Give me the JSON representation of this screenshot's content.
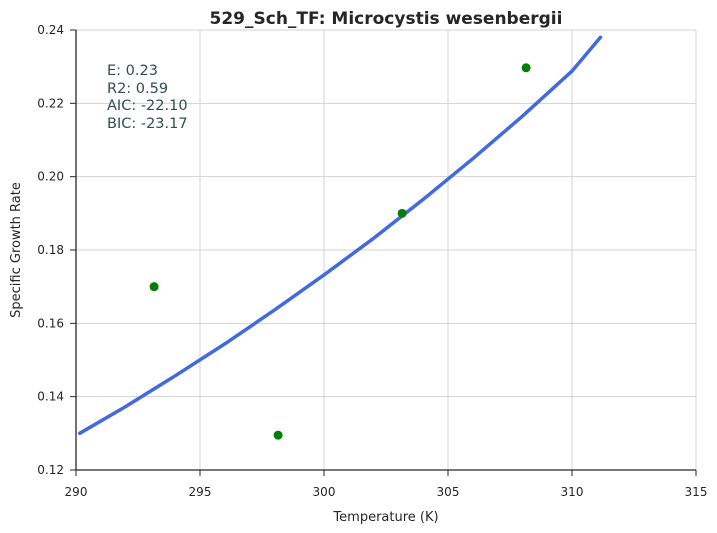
{
  "chart_data": {
    "type": "scatter",
    "title": "529_Sch_TF: Microcystis wesenbergii",
    "xlabel": "Temperature (K)",
    "ylabel": "Specific Growth Rate",
    "xlim": [
      290,
      315
    ],
    "ylim": [
      0.12,
      0.24
    ],
    "xticks": [
      290,
      295,
      300,
      305,
      310,
      315
    ],
    "yticks": [
      0.12,
      0.14,
      0.16,
      0.18,
      0.2,
      0.22,
      0.24
    ],
    "xtick_labels": [
      "290",
      "295",
      "300",
      "305",
      "310",
      "315"
    ],
    "ytick_labels": [
      "0.12",
      "0.14",
      "0.16",
      "0.18",
      "0.20",
      "0.22",
      "0.24"
    ],
    "grid": true,
    "series": [
      {
        "kind": "points",
        "color": "#008000",
        "x": [
          293.15,
          298.15,
          303.15,
          308.15
        ],
        "y": [
          0.17,
          0.1295,
          0.19,
          0.2297
        ]
      },
      {
        "kind": "line",
        "color": "#4169e1",
        "x": [
          290.15,
          292.0,
          294.0,
          296.0,
          298.0,
          300.0,
          302.0,
          304.0,
          306.0,
          308.0,
          310.0,
          311.15
        ],
        "y": [
          0.13,
          0.1373,
          0.1457,
          0.1544,
          0.1636,
          0.1732,
          0.1832,
          0.1938,
          0.2049,
          0.2165,
          0.2288,
          0.238
        ]
      }
    ],
    "annotations": [
      "E:  0.23",
      "R2:  0.59",
      "AIC: -22.10",
      "BIC: -23.17"
    ]
  }
}
